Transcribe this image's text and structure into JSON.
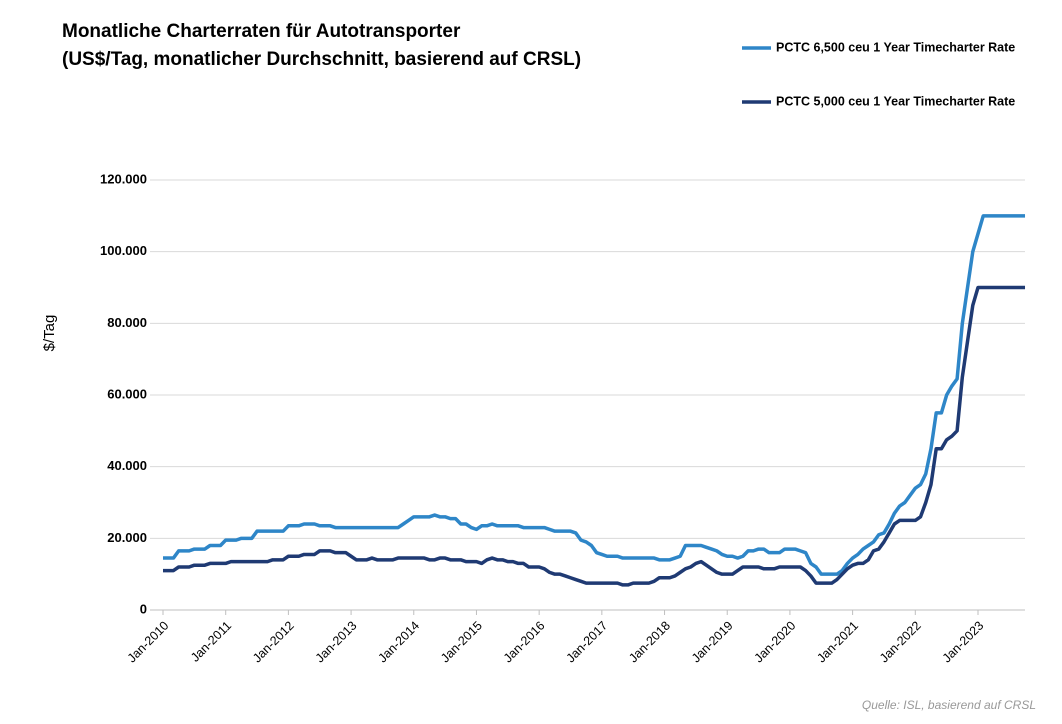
{
  "chart_data": {
    "type": "line",
    "title": "Monatliche Charterraten für Autotransporter",
    "subtitle": "(US$/Tag, monatlicher Durchschnitt, basierend auf CRSL)",
    "y_label": "$/Tag",
    "source": "Quelle: ISL, basierend auf CRSL",
    "legend": "top-right",
    "grid": true,
    "categories": [
      "Jan-2010",
      null,
      null,
      null,
      null,
      null,
      null,
      null,
      null,
      null,
      null,
      null,
      "Jan-2011",
      null,
      null,
      null,
      null,
      null,
      null,
      null,
      null,
      null,
      null,
      null,
      "Jan-2012",
      null,
      null,
      null,
      null,
      null,
      null,
      null,
      null,
      null,
      null,
      null,
      "Jan-2013",
      null,
      null,
      null,
      null,
      null,
      null,
      null,
      null,
      null,
      null,
      null,
      "Jan-2014",
      null,
      null,
      null,
      null,
      null,
      null,
      null,
      null,
      null,
      null,
      null,
      "Jan-2015",
      null,
      null,
      null,
      null,
      null,
      null,
      null,
      null,
      null,
      null,
      null,
      "Jan-2016",
      null,
      null,
      null,
      null,
      null,
      null,
      null,
      null,
      null,
      null,
      null,
      "Jan-2017",
      null,
      null,
      null,
      null,
      null,
      null,
      null,
      null,
      null,
      null,
      null,
      "Jan-2018",
      null,
      null,
      null,
      null,
      null,
      null,
      null,
      null,
      null,
      null,
      null,
      "Jan-2019",
      null,
      null,
      null,
      null,
      null,
      null,
      null,
      null,
      null,
      null,
      null,
      "Jan-2020",
      null,
      null,
      null,
      null,
      null,
      null,
      null,
      null,
      null,
      null,
      null,
      "Jan-2021",
      null,
      null,
      null,
      null,
      null,
      null,
      null,
      null,
      null,
      null,
      null,
      "Jan-2022",
      null,
      null,
      null,
      null,
      null,
      null,
      null,
      null,
      null,
      null,
      null,
      "Jan-2023",
      null,
      null,
      null,
      null,
      null,
      null,
      null,
      null,
      null
    ],
    "ylim": [
      0,
      120000
    ],
    "yticks": [
      0,
      {
        "value": 20000,
        "label": "20.000"
      },
      {
        "value": 40000,
        "label": "40.000"
      },
      {
        "value": 60000,
        "label": "60.000"
      },
      {
        "value": 80000,
        "label": "80.000"
      },
      {
        "value": 100000,
        "label": "100.000"
      },
      {
        "value": 120000,
        "label": "120.000"
      }
    ],
    "series": [
      {
        "name": "PCTC 6,500 ceu 1 Year Timecharter Rate",
        "color": "#2e86c8",
        "values": [
          14500,
          14500,
          14500,
          16500,
          16500,
          16500,
          17000,
          17000,
          17000,
          18000,
          18000,
          18000,
          19500,
          19500,
          19500,
          20000,
          20000,
          20000,
          22000,
          22000,
          22000,
          22000,
          22000,
          22000,
          23500,
          23500,
          23500,
          24000,
          24000,
          24000,
          23500,
          23500,
          23500,
          23000,
          23000,
          23000,
          23000,
          23000,
          23000,
          23000,
          23000,
          23000,
          23000,
          23000,
          23000,
          23000,
          24000,
          25000,
          26000,
          26000,
          26000,
          26000,
          26500,
          26000,
          26000,
          25500,
          25500,
          24000,
          24000,
          23000,
          22500,
          23500,
          23500,
          24000,
          23500,
          23500,
          23500,
          23500,
          23500,
          23000,
          23000,
          23000,
          23000,
          23000,
          22500,
          22000,
          22000,
          22000,
          22000,
          21500,
          19500,
          19000,
          18000,
          16000,
          15500,
          15000,
          15000,
          15000,
          14500,
          14500,
          14500,
          14500,
          14500,
          14500,
          14500,
          14000,
          14000,
          14000,
          14500,
          15000,
          18000,
          18000,
          18000,
          18000,
          17500,
          17000,
          16500,
          15500,
          15000,
          15000,
          14500,
          15000,
          16500,
          16500,
          17000,
          17000,
          16000,
          16000,
          16000,
          17000,
          17000,
          17000,
          16500,
          16000,
          13000,
          12000,
          10000,
          10000,
          10000,
          10000,
          11000,
          13000,
          14500,
          15500,
          17000,
          18000,
          19000,
          21000,
          21500,
          24000,
          27000,
          29000,
          30000,
          32000,
          34000,
          35000,
          38000,
          45000,
          55000,
          55000,
          60000,
          62500,
          64500,
          80000,
          90000,
          100000,
          105000,
          110000,
          110000,
          110000,
          110000,
          110000,
          110000,
          110000,
          110000,
          110000
        ]
      },
      {
        "name": "PCTC 5,000 ceu 1 Year Timecharter Rate",
        "color": "#1f3a73",
        "values": [
          11000,
          11000,
          11000,
          12000,
          12000,
          12000,
          12500,
          12500,
          12500,
          13000,
          13000,
          13000,
          13000,
          13500,
          13500,
          13500,
          13500,
          13500,
          13500,
          13500,
          13500,
          14000,
          14000,
          14000,
          15000,
          15000,
          15000,
          15500,
          15500,
          15500,
          16500,
          16500,
          16500,
          16000,
          16000,
          16000,
          15000,
          14000,
          14000,
          14000,
          14500,
          14000,
          14000,
          14000,
          14000,
          14500,
          14500,
          14500,
          14500,
          14500,
          14500,
          14000,
          14000,
          14500,
          14500,
          14000,
          14000,
          14000,
          13500,
          13500,
          13500,
          13000,
          14000,
          14500,
          14000,
          14000,
          13500,
          13500,
          13000,
          13000,
          12000,
          12000,
          12000,
          11500,
          10500,
          10000,
          10000,
          9500,
          9000,
          8500,
          8000,
          7500,
          7500,
          7500,
          7500,
          7500,
          7500,
          7500,
          7000,
          7000,
          7500,
          7500,
          7500,
          7500,
          8000,
          9000,
          9000,
          9000,
          9500,
          10500,
          11500,
          12000,
          13000,
          13500,
          12500,
          11500,
          10500,
          10000,
          10000,
          10000,
          11000,
          12000,
          12000,
          12000,
          12000,
          11500,
          11500,
          11500,
          12000,
          12000,
          12000,
          12000,
          12000,
          11000,
          9500,
          7500,
          7500,
          7500,
          7500,
          8500,
          10000,
          11500,
          12500,
          13000,
          13000,
          14000,
          16500,
          17000,
          19000,
          21500,
          24000,
          25000,
          25000,
          25000,
          25000,
          26000,
          30000,
          35000,
          45000,
          45000,
          47500,
          48500,
          50000,
          65000,
          75000,
          85000,
          90000,
          90000,
          90000,
          90000,
          90000,
          90000,
          90000,
          90000,
          90000,
          90000
        ]
      }
    ]
  }
}
